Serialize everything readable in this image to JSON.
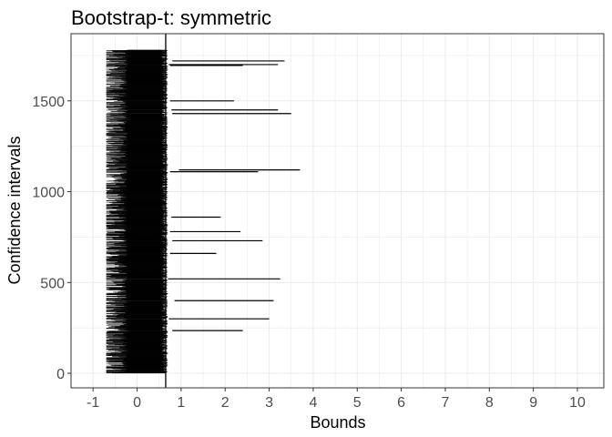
{
  "chart_data": {
    "type": "interval",
    "title": "Bootstrap-t: symmetric",
    "xlabel": "Bounds",
    "ylabel": "Confidence intervals",
    "xlim": [
      -1.5,
      10.6
    ],
    "ylim": [
      -80,
      1870
    ],
    "x_ticks": [
      -1,
      0,
      1,
      2,
      3,
      4,
      5,
      6,
      7,
      8,
      9,
      10
    ],
    "x_tick_labels": [
      "-1",
      "0",
      "1",
      "2",
      "3",
      "4",
      "5",
      "6",
      "7",
      "8",
      "9",
      "10"
    ],
    "y_ticks": [
      0,
      500,
      1000,
      1500
    ],
    "y_tick_labels": [
      "0",
      "500",
      "1000",
      "1500"
    ],
    "grid": true,
    "n_intervals": 1780,
    "reference_line_x": 0.65,
    "typical_interval": {
      "lower_range": [
        -0.7,
        -0.2
      ],
      "upper_range": [
        0.55,
        0.7
      ]
    },
    "outlier_intervals": [
      {
        "index": 1720,
        "lower": 0.8,
        "upper": 3.35
      },
      {
        "index": 1700,
        "lower": 0.72,
        "upper": 3.2
      },
      {
        "index": 1695,
        "lower": 0.75,
        "upper": 2.4
      },
      {
        "index": 1500,
        "lower": 0.75,
        "upper": 2.2
      },
      {
        "index": 1450,
        "lower": 0.78,
        "upper": 3.2
      },
      {
        "index": 1430,
        "lower": 0.8,
        "upper": 3.5
      },
      {
        "index": 1120,
        "lower": 0.95,
        "upper": 3.7
      },
      {
        "index": 1110,
        "lower": 0.75,
        "upper": 2.75
      },
      {
        "index": 860,
        "lower": 0.78,
        "upper": 1.9
      },
      {
        "index": 780,
        "lower": 0.75,
        "upper": 2.35
      },
      {
        "index": 730,
        "lower": 0.8,
        "upper": 2.85
      },
      {
        "index": 660,
        "lower": 0.75,
        "upper": 1.8
      },
      {
        "index": 520,
        "lower": 0.7,
        "upper": 3.25
      },
      {
        "index": 400,
        "lower": 0.85,
        "upper": 3.1
      },
      {
        "index": 300,
        "lower": 0.72,
        "upper": 3.0
      },
      {
        "index": 235,
        "lower": 0.8,
        "upper": 2.4
      }
    ]
  }
}
